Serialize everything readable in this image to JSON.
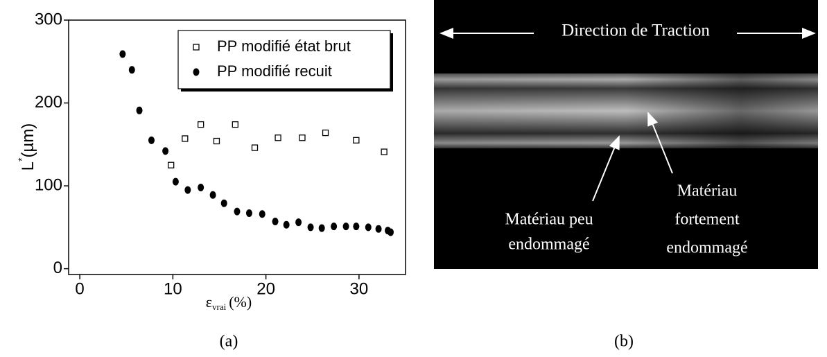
{
  "chart_data": {
    "type": "scatter",
    "ylabel": "L",
    "ylabel_sup": "*",
    "ylabel_unit": "(µm)",
    "xlabel": "ε",
    "xlabel_sub": "vrai",
    "xlabel_unit": "(%)",
    "caption": "(a)",
    "xlim": [
      -1.2,
      35
    ],
    "ylim": [
      -7,
      300
    ],
    "xticks": [
      0,
      10,
      20,
      30
    ],
    "yticks": [
      0,
      100,
      200,
      300
    ],
    "legend": "top-right",
    "series": [
      {
        "name": "PP modifié état brut",
        "color": "#000000",
        "marker": "square-open",
        "x": [
          9.8,
          11.3,
          13.0,
          14.7,
          16.7,
          18.8,
          21.3,
          23.9,
          26.4,
          29.7,
          32.7
        ],
        "values": [
          125,
          157,
          174,
          154,
          174,
          146,
          158,
          158,
          164,
          155,
          141
        ]
      },
      {
        "name": "PP modifié recuit",
        "color": "#000000",
        "marker": "circle",
        "x": [
          4.6,
          5.6,
          6.4,
          7.7,
          9.2,
          10.3,
          11.6,
          13.0,
          14.3,
          15.5,
          16.9,
          18.2,
          19.6,
          21.0,
          22.2,
          23.5,
          24.8,
          26.0,
          27.3,
          28.6,
          29.7,
          31.0,
          32.1,
          33.1,
          33.4
        ],
        "values": [
          259,
          240,
          191,
          155,
          142,
          105,
          95,
          98,
          89,
          79,
          69,
          67,
          66,
          57,
          53,
          56,
          50,
          49,
          51,
          51,
          51,
          50,
          48,
          46,
          44
        ]
      }
    ]
  },
  "photo": {
    "direction": "Direction de Traction",
    "label_left": [
      "Matériau peu",
      "endommagé"
    ],
    "label_right": [
      "Matériau",
      "fortement",
      "endommagé"
    ],
    "caption": "(b)"
  }
}
